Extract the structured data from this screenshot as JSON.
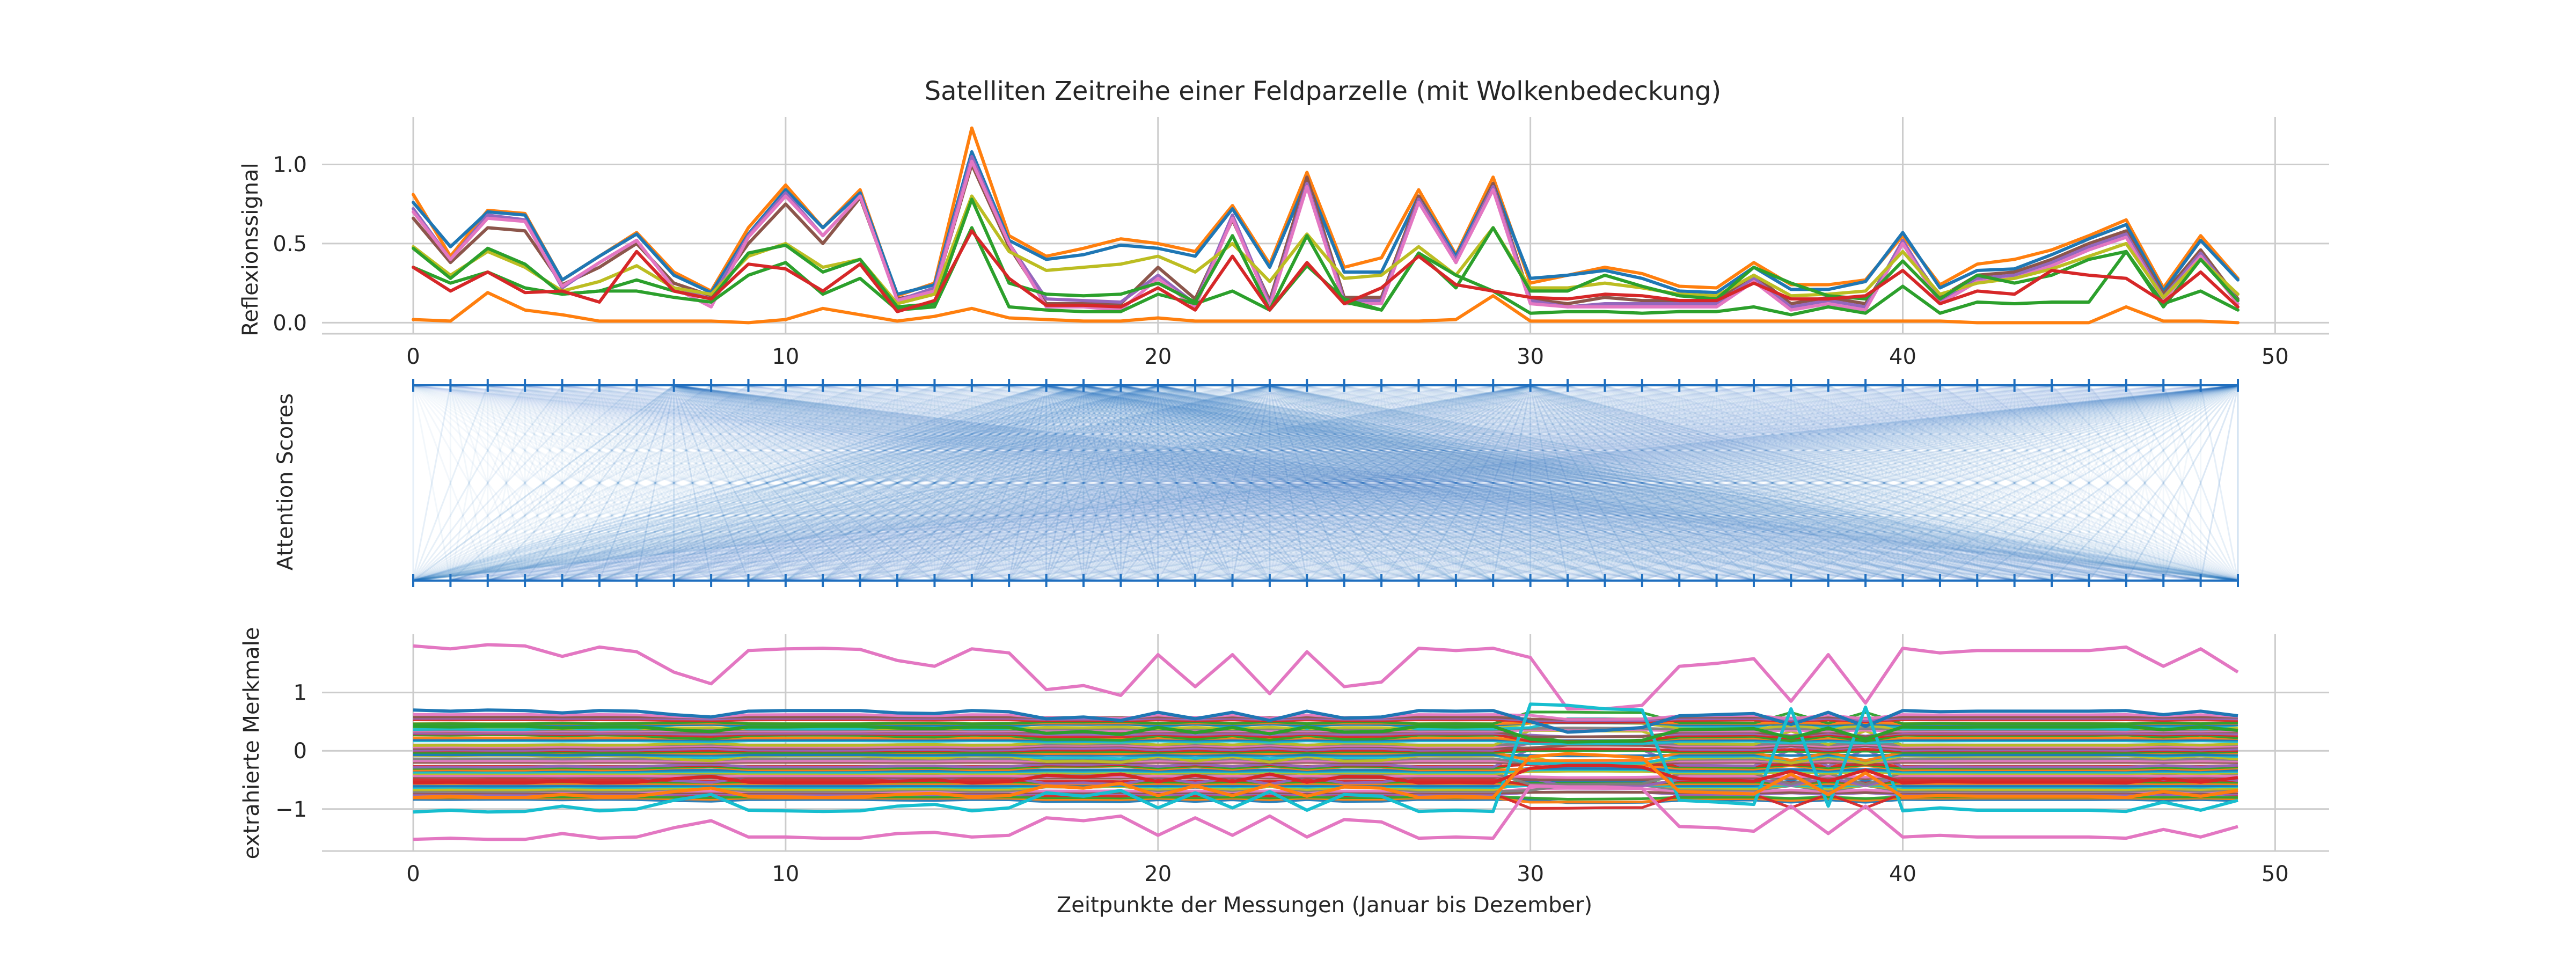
{
  "title": "Satelliten Zeitreihe einer Feldparzelle (mit Wolkenbedeckung)",
  "colors": {
    "palette": [
      "#1f77b4",
      "#ff7f0e",
      "#2ca02c",
      "#d62728",
      "#9467bd",
      "#8c564b",
      "#e377c2",
      "#7f7f7f",
      "#bcbd22",
      "#17becf"
    ],
    "grid": "#cccccc",
    "axis": "#cccccc",
    "attention": "#1f6fbf"
  },
  "chart_data": [
    {
      "type": "line",
      "ylabel": "Reflexionssignal",
      "xlabel": "",
      "xlim": [
        -2.45,
        51.45
      ],
      "ylim": [
        -0.07,
        1.3
      ],
      "xticks": [
        0,
        10,
        20,
        30,
        40,
        50
      ],
      "xtick_labels": [
        "0",
        "10",
        "20",
        "30",
        "40",
        "50"
      ],
      "yticks": [
        0.0,
        0.5,
        1.0
      ],
      "ytick_labels": [
        "0.0",
        "0.5",
        "1.0"
      ],
      "grid": true,
      "series": [
        {
          "color": "#ff7f0e",
          "values": [
            0.81,
            0.42,
            0.71,
            0.69,
            0.27,
            0.42,
            0.57,
            0.32,
            0.2,
            0.6,
            0.87,
            0.6,
            0.84,
            0.17,
            0.25,
            1.23,
            0.55,
            0.42,
            0.47,
            0.53,
            0.5,
            0.45,
            0.74,
            0.37,
            0.95,
            0.35,
            0.41,
            0.84,
            0.43,
            0.92,
            0.25,
            0.3,
            0.35,
            0.31,
            0.23,
            0.22,
            0.38,
            0.24,
            0.24,
            0.27,
            0.55,
            0.24,
            0.37,
            0.4,
            0.46,
            0.55,
            0.65,
            0.22,
            0.55,
            0.28
          ]
        },
        {
          "color": "#1f77b4",
          "values": [
            0.76,
            0.48,
            0.7,
            0.68,
            0.27,
            0.42,
            0.56,
            0.3,
            0.19,
            0.56,
            0.84,
            0.6,
            0.82,
            0.18,
            0.24,
            1.08,
            0.52,
            0.4,
            0.43,
            0.49,
            0.47,
            0.42,
            0.72,
            0.35,
            0.9,
            0.32,
            0.32,
            0.8,
            0.42,
            0.88,
            0.28,
            0.3,
            0.33,
            0.28,
            0.2,
            0.19,
            0.35,
            0.21,
            0.21,
            0.26,
            0.57,
            0.22,
            0.33,
            0.34,
            0.43,
            0.53,
            0.62,
            0.2,
            0.52,
            0.27
          ]
        },
        {
          "color": "#8c564b",
          "values": [
            0.66,
            0.38,
            0.6,
            0.58,
            0.24,
            0.35,
            0.5,
            0.25,
            0.17,
            0.5,
            0.75,
            0.5,
            0.79,
            0.15,
            0.2,
            1.0,
            0.48,
            0.12,
            0.12,
            0.12,
            0.35,
            0.15,
            0.65,
            0.14,
            0.92,
            0.16,
            0.16,
            0.8,
            0.38,
            0.88,
            0.15,
            0.12,
            0.16,
            0.14,
            0.14,
            0.14,
            0.3,
            0.12,
            0.16,
            0.12,
            0.5,
            0.16,
            0.3,
            0.32,
            0.4,
            0.5,
            0.58,
            0.18,
            0.46,
            0.15
          ]
        },
        {
          "color": "#9467bd",
          "values": [
            0.72,
            0.4,
            0.68,
            0.65,
            0.22,
            0.38,
            0.52,
            0.22,
            0.15,
            0.55,
            0.82,
            0.55,
            0.8,
            0.14,
            0.22,
            1.05,
            0.5,
            0.15,
            0.14,
            0.13,
            0.3,
            0.12,
            0.68,
            0.12,
            0.88,
            0.14,
            0.14,
            0.78,
            0.4,
            0.86,
            0.14,
            0.1,
            0.12,
            0.12,
            0.12,
            0.12,
            0.28,
            0.1,
            0.14,
            0.1,
            0.52,
            0.14,
            0.28,
            0.3,
            0.38,
            0.48,
            0.56,
            0.16,
            0.44,
            0.14
          ]
        },
        {
          "color": "#e377c2",
          "values": [
            0.7,
            0.4,
            0.66,
            0.64,
            0.23,
            0.38,
            0.52,
            0.22,
            0.1,
            0.54,
            0.8,
            0.55,
            0.8,
            0.14,
            0.2,
            1.02,
            0.5,
            0.1,
            0.1,
            0.08,
            0.28,
            0.1,
            0.66,
            0.1,
            0.86,
            0.12,
            0.12,
            0.76,
            0.38,
            0.84,
            0.12,
            0.1,
            0.1,
            0.1,
            0.1,
            0.1,
            0.26,
            0.08,
            0.12,
            0.08,
            0.5,
            0.12,
            0.26,
            0.28,
            0.36,
            0.46,
            0.54,
            0.14,
            0.42,
            0.12
          ]
        },
        {
          "color": "#bcbd22",
          "values": [
            0.48,
            0.3,
            0.45,
            0.35,
            0.2,
            0.26,
            0.36,
            0.22,
            0.18,
            0.42,
            0.5,
            0.35,
            0.4,
            0.12,
            0.18,
            0.8,
            0.45,
            0.33,
            0.35,
            0.37,
            0.42,
            0.32,
            0.5,
            0.26,
            0.56,
            0.28,
            0.3,
            0.48,
            0.3,
            0.6,
            0.22,
            0.22,
            0.25,
            0.22,
            0.18,
            0.17,
            0.3,
            0.17,
            0.18,
            0.2,
            0.45,
            0.18,
            0.25,
            0.28,
            0.34,
            0.42,
            0.5,
            0.16,
            0.4,
            0.18
          ]
        },
        {
          "color": "#2ca02c",
          "values": [
            0.47,
            0.28,
            0.47,
            0.37,
            0.18,
            0.2,
            0.27,
            0.2,
            0.15,
            0.44,
            0.49,
            0.32,
            0.4,
            0.1,
            0.12,
            0.78,
            0.25,
            0.18,
            0.17,
            0.18,
            0.25,
            0.13,
            0.55,
            0.08,
            0.55,
            0.13,
            0.08,
            0.44,
            0.22,
            0.6,
            0.2,
            0.2,
            0.3,
            0.23,
            0.17,
            0.15,
            0.35,
            0.25,
            0.17,
            0.15,
            0.39,
            0.15,
            0.3,
            0.25,
            0.3,
            0.4,
            0.45,
            0.1,
            0.4,
            0.14
          ]
        },
        {
          "color": "#2ca02c",
          "values": [
            0.35,
            0.25,
            0.32,
            0.22,
            0.18,
            0.2,
            0.2,
            0.16,
            0.13,
            0.3,
            0.38,
            0.18,
            0.28,
            0.08,
            0.1,
            0.6,
            0.1,
            0.08,
            0.07,
            0.07,
            0.18,
            0.12,
            0.2,
            0.08,
            0.36,
            0.15,
            0.08,
            0.44,
            0.3,
            0.2,
            0.06,
            0.07,
            0.07,
            0.06,
            0.07,
            0.07,
            0.1,
            0.05,
            0.1,
            0.06,
            0.23,
            0.06,
            0.13,
            0.12,
            0.13,
            0.13,
            0.45,
            0.12,
            0.2,
            0.08
          ]
        },
        {
          "color": "#d62728",
          "values": [
            0.35,
            0.2,
            0.32,
            0.19,
            0.2,
            0.13,
            0.45,
            0.2,
            0.15,
            0.37,
            0.34,
            0.2,
            0.37,
            0.07,
            0.14,
            0.58,
            0.28,
            0.11,
            0.11,
            0.1,
            0.22,
            0.08,
            0.42,
            0.08,
            0.38,
            0.12,
            0.22,
            0.42,
            0.24,
            0.2,
            0.16,
            0.15,
            0.18,
            0.17,
            0.14,
            0.14,
            0.25,
            0.15,
            0.15,
            0.17,
            0.33,
            0.12,
            0.2,
            0.18,
            0.33,
            0.3,
            0.28,
            0.13,
            0.32,
            0.1
          ]
        },
        {
          "color": "#ff7f0e",
          "values": [
            0.02,
            0.01,
            0.19,
            0.08,
            0.05,
            0.01,
            0.01,
            0.01,
            0.01,
            0.0,
            0.02,
            0.09,
            0.05,
            0.01,
            0.04,
            0.09,
            0.03,
            0.02,
            0.01,
            0.01,
            0.03,
            0.01,
            0.01,
            0.01,
            0.01,
            0.01,
            0.01,
            0.01,
            0.02,
            0.17,
            0.01,
            0.01,
            0.01,
            0.01,
            0.01,
            0.01,
            0.01,
            0.01,
            0.01,
            0.01,
            0.01,
            0.01,
            0.0,
            0.0,
            0.0,
            0.0,
            0.1,
            0.01,
            0.01,
            0.0
          ]
        }
      ]
    },
    {
      "type": "attention",
      "ylabel": "Attention Scores",
      "n_positions": 50,
      "highlighted_top_positions": [
        7,
        17,
        18,
        19,
        20,
        23,
        30,
        49
      ],
      "note_only_for_rendering": false
    },
    {
      "type": "line",
      "ylabel": "extrahierte Merkmale",
      "xlabel": "Zeitpunkte der Messungen (Januar bis Dezember)",
      "xlim": [
        -2.45,
        51.45
      ],
      "ylim": [
        -1.72,
        2.0
      ],
      "xticks": [
        0,
        10,
        20,
        30,
        40,
        50
      ],
      "xtick_labels": [
        "0",
        "10",
        "20",
        "30",
        "40",
        "50"
      ],
      "yticks": [
        -1,
        0,
        1
      ],
      "ytick_labels": [
        "−1",
        "0",
        "1"
      ],
      "grid": true,
      "n_features": 64,
      "highlighted_series": [
        {
          "color": "#e377c2",
          "values": [
            1.8,
            1.75,
            1.82,
            1.8,
            1.62,
            1.78,
            1.7,
            1.35,
            1.15,
            1.72,
            1.75,
            1.76,
            1.74,
            1.55,
            1.45,
            1.75,
            1.68,
            1.05,
            1.12,
            0.95,
            1.65,
            1.1,
            1.65,
            0.98,
            1.7,
            1.1,
            1.18,
            1.76,
            1.72,
            1.76,
            1.6,
            0.72,
            0.72,
            0.78,
            1.45,
            1.5,
            1.58,
            0.85,
            1.65,
            0.82,
            1.76,
            1.68,
            1.72,
            1.72,
            1.72,
            1.72,
            1.78,
            1.45,
            1.75,
            1.35
          ]
        },
        {
          "color": "#e377c2",
          "values": [
            -1.52,
            -1.5,
            -1.52,
            -1.52,
            -1.42,
            -1.5,
            -1.48,
            -1.32,
            -1.2,
            -1.48,
            -1.48,
            -1.5,
            -1.5,
            -1.42,
            -1.4,
            -1.48,
            -1.45,
            -1.15,
            -1.2,
            -1.12,
            -1.45,
            -1.15,
            -1.45,
            -1.12,
            -1.48,
            -1.18,
            -1.22,
            -1.5,
            -1.48,
            -1.5,
            -0.6,
            -0.62,
            -0.62,
            -0.65,
            -1.3,
            -1.32,
            -1.38,
            -0.95,
            -1.42,
            -0.95,
            -1.48,
            -1.45,
            -1.48,
            -1.48,
            -1.48,
            -1.48,
            -1.5,
            -1.35,
            -1.48,
            -1.3
          ]
        },
        {
          "color": "#1f77b4",
          "values": [
            0.7,
            0.68,
            0.7,
            0.69,
            0.65,
            0.69,
            0.68,
            0.62,
            0.58,
            0.68,
            0.69,
            0.69,
            0.69,
            0.65,
            0.64,
            0.69,
            0.67,
            0.55,
            0.58,
            0.52,
            0.66,
            0.55,
            0.66,
            0.52,
            0.68,
            0.56,
            0.58,
            0.69,
            0.68,
            0.69,
            0.5,
            0.32,
            0.35,
            0.4,
            0.6,
            0.62,
            0.64,
            0.45,
            0.66,
            0.42,
            0.69,
            0.67,
            0.68,
            0.68,
            0.68,
            0.68,
            0.69,
            0.62,
            0.68,
            0.6
          ]
        },
        {
          "color": "#17becf",
          "values": [
            -1.05,
            -1.02,
            -1.05,
            -1.04,
            -0.95,
            -1.03,
            -1.0,
            -0.85,
            -0.75,
            -1.02,
            -1.03,
            -1.04,
            -1.03,
            -0.95,
            -0.92,
            -1.03,
            -0.98,
            -0.72,
            -0.78,
            -0.68,
            -0.98,
            -0.72,
            -0.98,
            -0.7,
            -1.02,
            -0.75,
            -0.78,
            -1.04,
            -1.02,
            -1.04,
            0.8,
            0.78,
            0.72,
            0.7,
            -0.85,
            -0.88,
            -0.92,
            0.72,
            -0.95,
            0.75,
            -1.03,
            -0.98,
            -1.02,
            -1.02,
            -1.02,
            -1.02,
            -1.04,
            -0.88,
            -1.02,
            -0.85
          ]
        },
        {
          "color": "#d62728",
          "values": [
            -0.55,
            -0.54,
            -0.55,
            -0.55,
            -0.52,
            -0.55,
            -0.54,
            -0.48,
            -0.44,
            -0.54,
            -0.55,
            -0.55,
            -0.55,
            -0.52,
            -0.5,
            -0.55,
            -0.53,
            -0.42,
            -0.45,
            -0.4,
            -0.53,
            -0.42,
            -0.53,
            -0.4,
            -0.54,
            -0.44,
            -0.45,
            -0.55,
            -0.54,
            -0.55,
            -0.3,
            -0.25,
            -0.25,
            -0.28,
            -0.48,
            -0.5,
            -0.52,
            -0.35,
            -0.52,
            -0.33,
            -0.55,
            -0.53,
            -0.54,
            -0.54,
            -0.54,
            -0.54,
            -0.55,
            -0.48,
            -0.54,
            -0.46
          ]
        },
        {
          "color": "#2ca02c",
          "values": [
            0.42,
            0.41,
            0.42,
            0.42,
            0.39,
            0.41,
            0.41,
            0.36,
            0.33,
            0.41,
            0.41,
            0.42,
            0.42,
            0.39,
            0.38,
            0.41,
            0.4,
            0.3,
            0.33,
            0.28,
            0.4,
            0.31,
            0.4,
            0.29,
            0.41,
            0.32,
            0.33,
            0.42,
            0.41,
            0.42,
            0.2,
            0.15,
            0.16,
            0.18,
            0.36,
            0.37,
            0.38,
            0.22,
            0.39,
            0.2,
            0.41,
            0.4,
            0.41,
            0.41,
            0.41,
            0.41,
            0.42,
            0.36,
            0.41,
            0.35
          ]
        },
        {
          "color": "#ff7f0e",
          "values": [
            -0.8,
            -0.78,
            -0.8,
            -0.8,
            -0.75,
            -0.79,
            -0.78,
            -0.7,
            -0.64,
            -0.78,
            -0.79,
            -0.8,
            -0.79,
            -0.75,
            -0.73,
            -0.79,
            -0.77,
            -0.6,
            -0.64,
            -0.56,
            -0.77,
            -0.6,
            -0.77,
            -0.58,
            -0.78,
            -0.62,
            -0.64,
            -0.8,
            -0.78,
            -0.8,
            -0.1,
            -0.05,
            -0.08,
            -0.12,
            -0.7,
            -0.72,
            -0.74,
            -0.4,
            -0.75,
            -0.38,
            -0.79,
            -0.77,
            -0.78,
            -0.78,
            -0.78,
            -0.78,
            -0.8,
            -0.7,
            -0.78,
            -0.68
          ]
        }
      ]
    }
  ]
}
